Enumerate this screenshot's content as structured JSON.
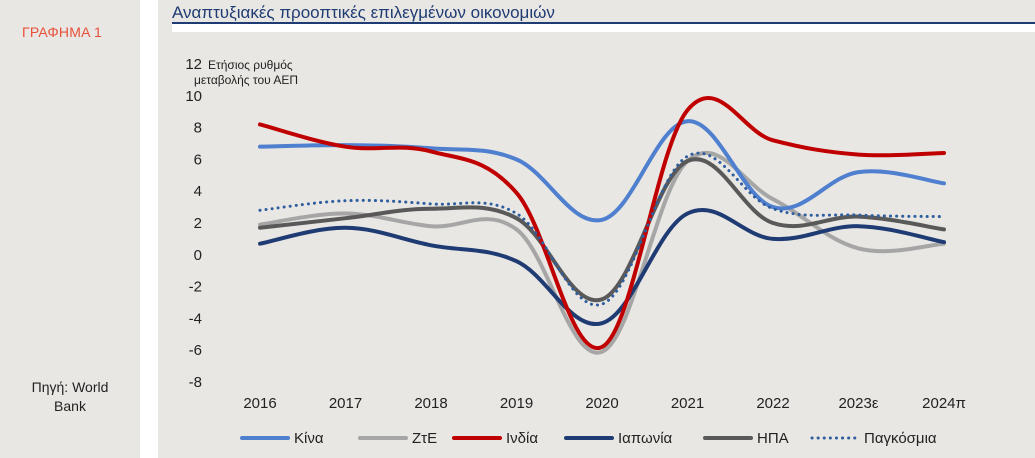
{
  "sidebar": {
    "figure_label": "ΓΡΑΦΗΜΑ 1",
    "source_line1": "Πηγή: World",
    "source_line2": "Bank"
  },
  "colors": {
    "kina": "#4f7fcf",
    "zte": "#a6a6a6",
    "india": "#c00000",
    "japan": "#1f3b73",
    "usa": "#595959",
    "global": "#2e5e9e",
    "title": "#1f3b73",
    "accent": "#e8503a"
  },
  "chart_data": {
    "type": "line",
    "title": "Αναπτυξιακές προοπτικές επιλεγμένων οικονομιών",
    "ylabel_line1": "Ετήσιος ρυθμός",
    "ylabel_line2": "μεταβολής του ΑΕΠ",
    "xlabel": "",
    "ylim": [
      -8,
      12
    ],
    "yticks": [
      12,
      10,
      8,
      6,
      4,
      2,
      0,
      -2,
      -4,
      -6,
      -8
    ],
    "categories": [
      "2016",
      "2017",
      "2018",
      "2019",
      "2020",
      "2021",
      "2022",
      "2023ε",
      "2024π"
    ],
    "grid": false,
    "legend_position": "bottom",
    "series": [
      {
        "name": "Κίνα",
        "values": [
          6.8,
          6.9,
          6.7,
          6.0,
          2.2,
          8.4,
          3.0,
          5.2,
          4.5
        ],
        "color": "#4f7fcf",
        "style": "solid"
      },
      {
        "name": "ΖτΕ",
        "values": [
          1.9,
          2.6,
          1.8,
          1.6,
          -6.1,
          5.9,
          3.5,
          0.4,
          0.7
        ],
        "color": "#a6a6a6",
        "style": "solid"
      },
      {
        "name": "Ινδία",
        "values": [
          8.2,
          6.8,
          6.5,
          3.9,
          -5.8,
          9.1,
          7.2,
          6.3,
          6.4
        ],
        "color": "#c00000",
        "style": "solid"
      },
      {
        "name": "Ιαπωνία",
        "values": [
          0.7,
          1.7,
          0.6,
          -0.4,
          -4.3,
          2.6,
          1.0,
          1.8,
          0.8
        ],
        "color": "#1f3b73",
        "style": "solid"
      },
      {
        "name": "ΗΠΑ",
        "values": [
          1.7,
          2.3,
          2.9,
          2.3,
          -2.8,
          5.9,
          2.0,
          2.4,
          1.6
        ],
        "color": "#595959",
        "style": "solid"
      },
      {
        "name": "Παγκόσμια",
        "values": [
          2.8,
          3.4,
          3.2,
          2.6,
          -3.1,
          6.2,
          2.9,
          2.5,
          2.4
        ],
        "color": "#2e5e9e",
        "style": "dotted"
      }
    ]
  }
}
